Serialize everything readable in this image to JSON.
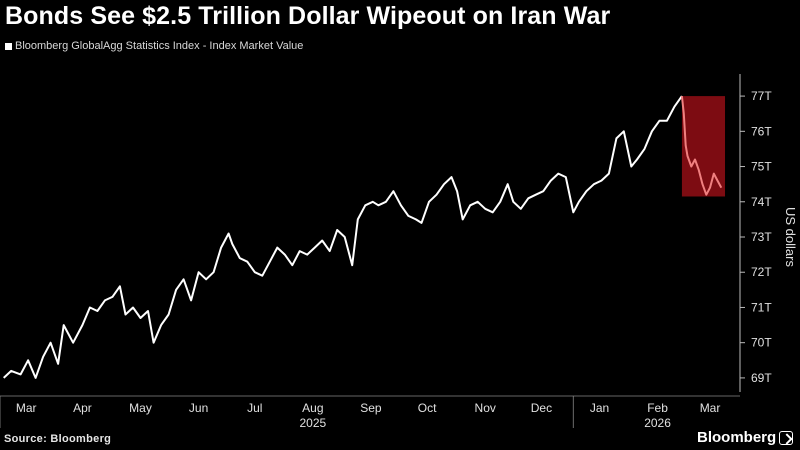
{
  "title": "Bonds See $2.5 Trillion Dollar Wipeout on Iran War",
  "legend_label": "Bloomberg GlobalAgg Statistics Index - Index Market Value",
  "source": "Source: Bloomberg",
  "brand": "Bloomberg",
  "colors": {
    "background": "#000000",
    "line": "#ffffff",
    "highlight_fill": "#8b0d14",
    "highlight_line": "#f08080",
    "gridline": "#444444"
  },
  "chart_data": {
    "type": "line",
    "series": [
      {
        "name": "Bloomberg GlobalAgg Statistics Index - Index Market Value",
        "values": [
          [
            "2025-03-03",
            69.0
          ],
          [
            "2025-03-07",
            69.2
          ],
          [
            "2025-03-12",
            69.1
          ],
          [
            "2025-03-16",
            69.5
          ],
          [
            "2025-03-20",
            69.0
          ],
          [
            "2025-03-24",
            69.6
          ],
          [
            "2025-03-28",
            70.0
          ],
          [
            "2025-04-01",
            69.4
          ],
          [
            "2025-04-04",
            70.5
          ],
          [
            "2025-04-09",
            70.0
          ],
          [
            "2025-04-14",
            70.5
          ],
          [
            "2025-04-18",
            71.0
          ],
          [
            "2025-04-22",
            70.9
          ],
          [
            "2025-04-26",
            71.2
          ],
          [
            "2025-04-30",
            71.3
          ],
          [
            "2025-05-04",
            71.6
          ],
          [
            "2025-05-07",
            70.8
          ],
          [
            "2025-05-11",
            71.0
          ],
          [
            "2025-05-15",
            70.7
          ],
          [
            "2025-05-19",
            70.9
          ],
          [
            "2025-05-22",
            70.0
          ],
          [
            "2025-05-26",
            70.5
          ],
          [
            "2025-05-30",
            70.8
          ],
          [
            "2025-06-03",
            71.5
          ],
          [
            "2025-06-07",
            71.8
          ],
          [
            "2025-06-11",
            71.2
          ],
          [
            "2025-06-15",
            72.0
          ],
          [
            "2025-06-19",
            71.8
          ],
          [
            "2025-06-23",
            72.0
          ],
          [
            "2025-06-27",
            72.7
          ],
          [
            "2025-07-01",
            73.1
          ],
          [
            "2025-07-03",
            72.8
          ],
          [
            "2025-07-07",
            72.4
          ],
          [
            "2025-07-11",
            72.3
          ],
          [
            "2025-07-15",
            72.0
          ],
          [
            "2025-07-19",
            71.9
          ],
          [
            "2025-07-23",
            72.3
          ],
          [
            "2025-07-27",
            72.7
          ],
          [
            "2025-07-31",
            72.5
          ],
          [
            "2025-08-04",
            72.2
          ],
          [
            "2025-08-08",
            72.6
          ],
          [
            "2025-08-12",
            72.5
          ],
          [
            "2025-08-16",
            72.7
          ],
          [
            "2025-08-20",
            72.9
          ],
          [
            "2025-08-24",
            72.6
          ],
          [
            "2025-08-28",
            73.2
          ],
          [
            "2025-09-01",
            73.0
          ],
          [
            "2025-09-05",
            72.2
          ],
          [
            "2025-09-08",
            73.5
          ],
          [
            "2025-09-12",
            73.9
          ],
          [
            "2025-09-16",
            74.0
          ],
          [
            "2025-09-19",
            73.9
          ],
          [
            "2025-09-23",
            74.0
          ],
          [
            "2025-09-27",
            74.3
          ],
          [
            "2025-10-01",
            73.9
          ],
          [
            "2025-10-05",
            73.6
          ],
          [
            "2025-10-09",
            73.5
          ],
          [
            "2025-10-12",
            73.4
          ],
          [
            "2025-10-16",
            74.0
          ],
          [
            "2025-10-20",
            74.2
          ],
          [
            "2025-10-24",
            74.5
          ],
          [
            "2025-10-28",
            74.7
          ],
          [
            "2025-10-31",
            74.3
          ],
          [
            "2025-11-03",
            73.5
          ],
          [
            "2025-11-07",
            73.9
          ],
          [
            "2025-11-11",
            74.0
          ],
          [
            "2025-11-15",
            73.8
          ],
          [
            "2025-11-19",
            73.7
          ],
          [
            "2025-11-23",
            74.0
          ],
          [
            "2025-11-27",
            74.5
          ],
          [
            "2025-11-30",
            74.0
          ],
          [
            "2025-12-04",
            73.8
          ],
          [
            "2025-12-08",
            74.1
          ],
          [
            "2025-12-12",
            74.2
          ],
          [
            "2025-12-16",
            74.3
          ],
          [
            "2025-12-20",
            74.6
          ],
          [
            "2025-12-24",
            74.8
          ],
          [
            "2025-12-28",
            74.7
          ],
          [
            "2026-01-01",
            73.7
          ],
          [
            "2026-01-04",
            74.0
          ],
          [
            "2026-01-08",
            74.3
          ],
          [
            "2026-01-12",
            74.5
          ],
          [
            "2026-01-16",
            74.6
          ],
          [
            "2026-01-20",
            74.8
          ],
          [
            "2026-01-24",
            75.8
          ],
          [
            "2026-01-28",
            76.0
          ],
          [
            "2026-02-01",
            75.0
          ],
          [
            "2026-02-04",
            75.2
          ],
          [
            "2026-02-08",
            75.5
          ],
          [
            "2026-02-12",
            76.0
          ],
          [
            "2026-02-16",
            76.3
          ],
          [
            "2026-02-20",
            76.3
          ],
          [
            "2026-02-24",
            76.7
          ],
          [
            "2026-02-28",
            77.0
          ],
          [
            "2026-03-01",
            76.5
          ],
          [
            "2026-03-02",
            75.6
          ],
          [
            "2026-03-03",
            75.3
          ],
          [
            "2026-03-05",
            75.0
          ],
          [
            "2026-03-07",
            75.2
          ],
          [
            "2026-03-09",
            74.9
          ],
          [
            "2026-03-11",
            74.5
          ],
          [
            "2026-03-13",
            74.2
          ],
          [
            "2026-03-15",
            74.4
          ],
          [
            "2026-03-17",
            74.8
          ],
          [
            "2026-03-19",
            74.6
          ],
          [
            "2026-03-21",
            74.4
          ]
        ]
      }
    ],
    "highlight": {
      "x_start": "2026-02-28",
      "x_end": "2026-03-23",
      "y_low": 74.15,
      "y_high": 77.0
    },
    "x_ticks": [
      [
        "2025-03-15",
        "Mar"
      ],
      [
        "2025-04-14",
        "Apr"
      ],
      [
        "2025-05-15",
        "May"
      ],
      [
        "2025-06-15",
        "Jun"
      ],
      [
        "2025-07-15",
        "Jul"
      ],
      [
        "2025-08-15",
        "Aug"
      ],
      [
        "2025-09-15",
        "Sep"
      ],
      [
        "2025-10-15",
        "Oct"
      ],
      [
        "2025-11-15",
        "Nov"
      ],
      [
        "2025-12-15",
        "Dec"
      ],
      [
        "2026-01-15",
        "Jan"
      ],
      [
        "2026-02-15",
        "Feb"
      ],
      [
        "2026-03-15",
        "Mar"
      ]
    ],
    "year_labels": [
      [
        "2025-08-15",
        "2025"
      ],
      [
        "2026-02-15",
        "2026"
      ]
    ],
    "y_ticks": [
      69,
      70,
      71,
      72,
      73,
      74,
      75,
      76,
      77
    ],
    "y_tick_labels": [
      "69T",
      "70T",
      "71T",
      "72T",
      "73T",
      "74T",
      "75T",
      "76T",
      "77T"
    ],
    "ylabel": "US dollars",
    "xlim": [
      "2025-03-01",
      "2026-03-31"
    ],
    "ylim": [
      68.6,
      77.4
    ],
    "grid": false
  }
}
